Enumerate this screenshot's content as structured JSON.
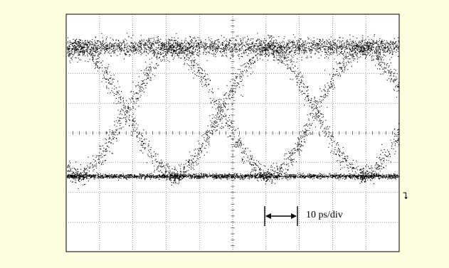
{
  "chart_data": {
    "type": "scatter",
    "subtype": "eye-diagram",
    "grid": true,
    "grid_divisions": {
      "x": 10,
      "y": 8
    },
    "annotation": "10 ps/div",
    "eye_crossings_div": [
      1.8,
      4.65,
      7.5
    ],
    "ui_div": 2.85,
    "series": [
      {
        "level": "high",
        "y_div": 2.9,
        "spread_div": 0.3
      },
      {
        "level": "low",
        "y_div": -1.45,
        "spread_div": 0.08
      }
    ]
  },
  "markers": {
    "ground_symbol": "⮧"
  },
  "colors": {
    "background": "#fffde0",
    "plot_background": "#ffffff",
    "trace": "#000000",
    "grid": "#555555"
  }
}
